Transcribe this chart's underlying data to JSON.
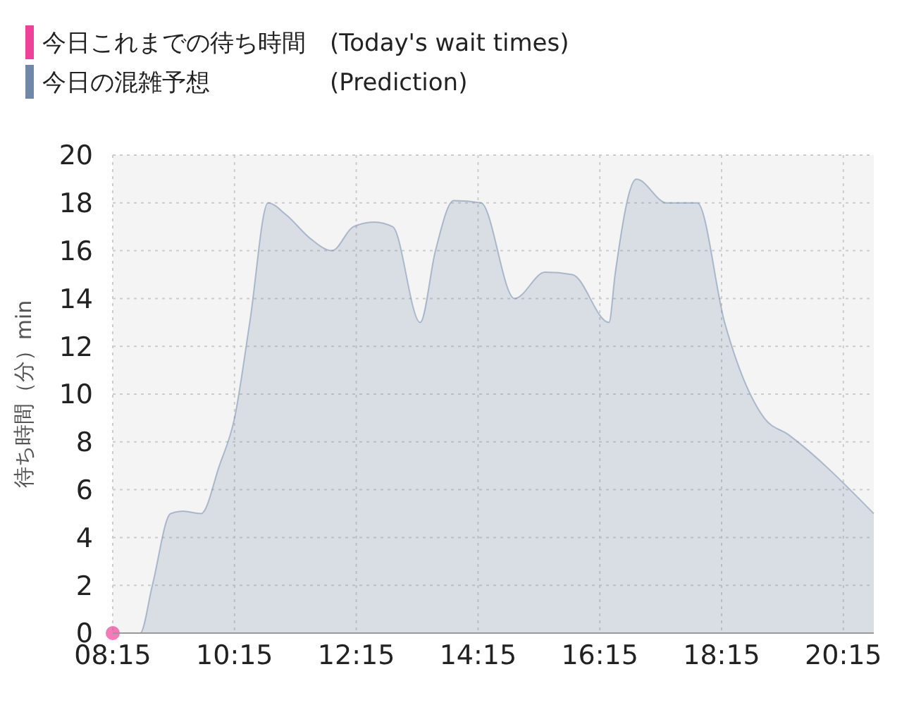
{
  "chart_data": {
    "type": "area",
    "ylabel": "待ち時間（分）min",
    "legend": "top left",
    "grid": true,
    "xlim": [
      8.25,
      20.75
    ],
    "ylim": [
      0,
      20
    ],
    "xticks": [
      {
        "value": 8.25,
        "label": "08:15"
      },
      {
        "value": 10.25,
        "label": "10:15"
      },
      {
        "value": 12.25,
        "label": "12:15"
      },
      {
        "value": 14.25,
        "label": "14:15"
      },
      {
        "value": 16.25,
        "label": "16:15"
      },
      {
        "value": 18.25,
        "label": "18:15"
      },
      {
        "value": 20.25,
        "label": "20:15"
      }
    ],
    "yticks": [
      0,
      2,
      4,
      6,
      8,
      10,
      12,
      14,
      16,
      18,
      20
    ],
    "series": [
      {
        "name": "今日これまでの待ち時間　(Today's wait times)",
        "type": "scatter",
        "marker": "circle",
        "color": "#f0419a",
        "x": [
          8.25
        ],
        "values": [
          0
        ]
      },
      {
        "name": "今日の混雑予想　　　　　(Prediction)",
        "color": "#6f88aa",
        "x": [
          8.25,
          8.7,
          8.9,
          9.2,
          9.4,
          9.7,
          10.0,
          10.25,
          10.5,
          10.8,
          11.1,
          11.5,
          11.85,
          12.2,
          12.55,
          12.85,
          13.3,
          13.55,
          13.85,
          14.3,
          14.85,
          15.35,
          15.8,
          16.4,
          16.5,
          16.85,
          17.35,
          17.85,
          18.3,
          18.95,
          19.35,
          20.75
        ],
        "values": [
          0,
          0,
          2,
          5,
          5.1,
          5,
          7,
          9,
          13,
          18,
          17.5,
          16.5,
          16,
          17,
          17.2,
          17,
          13,
          16,
          18.1,
          18,
          14,
          15.1,
          15,
          13,
          15,
          19,
          18,
          18,
          13,
          9,
          8.3,
          5
        ]
      }
    ]
  }
}
